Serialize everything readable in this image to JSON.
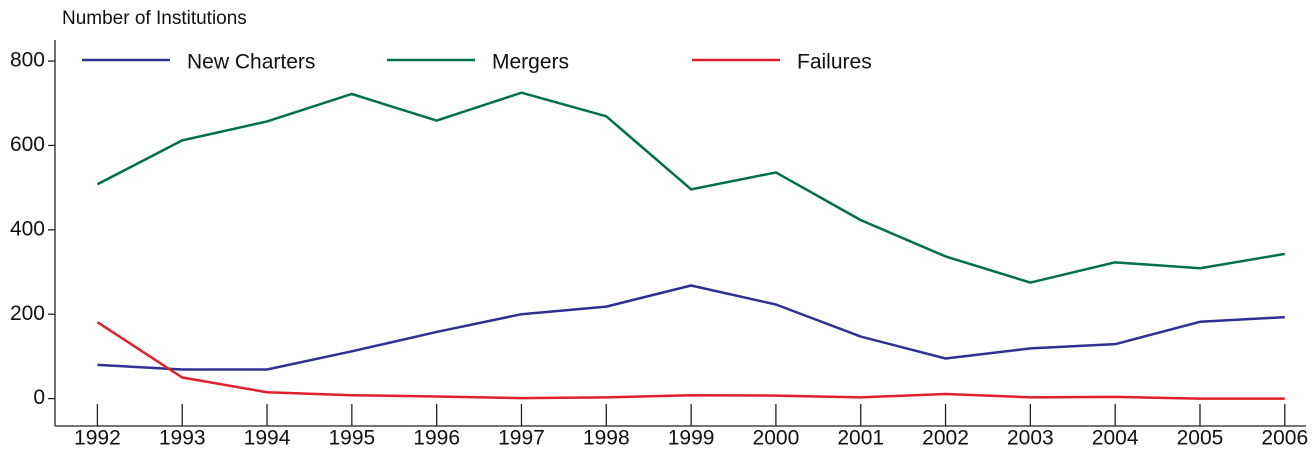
{
  "chart_data": {
    "type": "line",
    "y_label": "Number of Institutions",
    "x": [
      1992,
      1993,
      1994,
      1995,
      1996,
      1997,
      1998,
      1999,
      2000,
      2001,
      2002,
      2003,
      2004,
      2005,
      2006
    ],
    "series": [
      {
        "name": "New Charters",
        "color": "#2e3192",
        "values": [
          80,
          69,
          69,
          112,
          158,
          200,
          218,
          268,
          223,
          147,
          95,
          119,
          129,
          182,
          193
        ]
      },
      {
        "name": "Mergers",
        "color": "#00704a",
        "values": [
          508,
          612,
          657,
          722,
          659,
          725,
          669,
          496,
          536,
          423,
          337,
          275,
          323,
          309,
          343
        ]
      },
      {
        "name": "Failures",
        "color": "#e2202a",
        "values": [
          181,
          50,
          15,
          8,
          5,
          1,
          3,
          8,
          7,
          3,
          11,
          3,
          4,
          0,
          0
        ]
      }
    ],
    "xlim": [
      1991.5,
      2006.25
    ],
    "xticks": [
      1992,
      1993,
      1994,
      1995,
      1996,
      1997,
      1998,
      1999,
      2000,
      2001,
      2002,
      2003,
      2004,
      2005,
      2006
    ],
    "ylim": [
      -65,
      850
    ],
    "yticks": [
      0,
      200,
      400,
      600,
      800
    ],
    "grid": false,
    "legend": "top"
  }
}
